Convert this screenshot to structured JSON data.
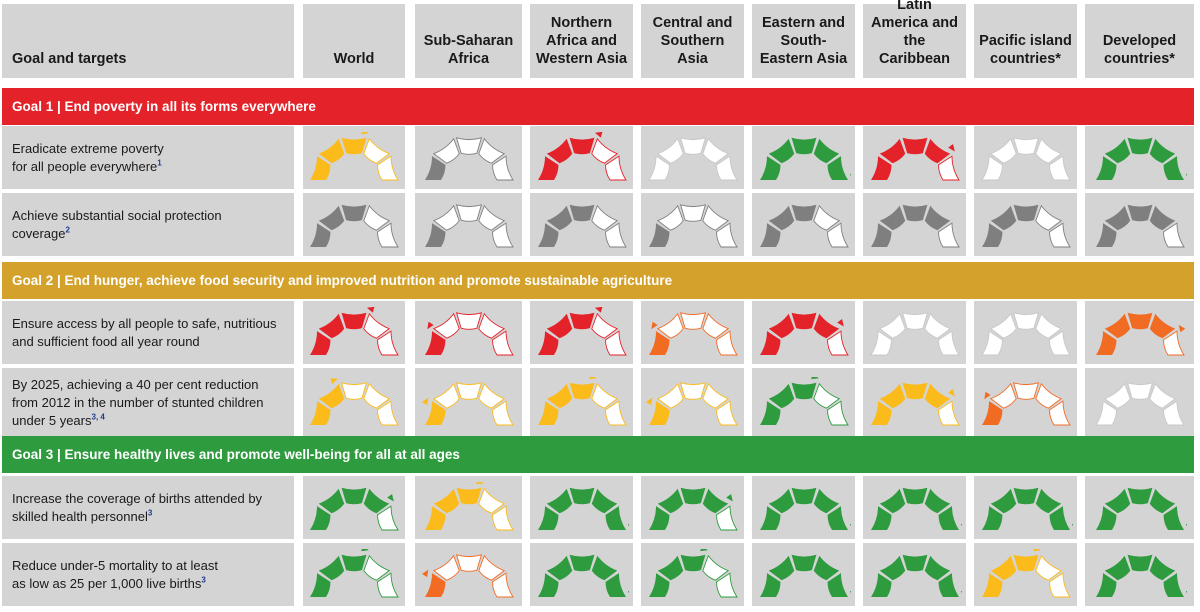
{
  "colors": {
    "goal1": "#e42229",
    "goal2": "#d4a12a",
    "goal3": "#2e9b3e",
    "red": "#e42229",
    "orange": "#f26b23",
    "yellow": "#fbbb1b",
    "green": "#2e9b3e",
    "grey": "#7f7f80",
    "empty_stroke": "#c8c8c8"
  },
  "header": {
    "first": "Goal and targets",
    "regions": [
      "World",
      "Sub-Saharan Africa",
      "Northern Africa and Western Asia",
      "Central and Southern Asia",
      "Eastern and South-Eastern Asia",
      "Latin America and the Caribbean",
      "Pacific island countries*",
      "Developed countries*"
    ]
  },
  "chart_data": {
    "type": "table",
    "title": "",
    "legend": "gauge = progress level (1-5 segments filled); color = status; arrow = trend (up = improving, down = deteriorating)",
    "columns": [
      "World",
      "Sub-Saharan Africa",
      "Northern Africa and Western Asia",
      "Central and Southern Asia",
      "Eastern and South-Eastern Asia",
      "Latin America and the Caribbean",
      "Pacific island countries*",
      "Developed countries*"
    ],
    "goals": [
      {
        "title": "Goal 1 | End poverty in all its forms everywhere",
        "color": "goal1",
        "rows": [
          {
            "target": "Eradicate extreme poverty for all people everywhere",
            "lines": [
              "Eradicate extreme poverty",
              "for all people everywhere"
            ],
            "footnote": "1",
            "gauges": [
              {
                "level": 3,
                "color": "yellow",
                "trend": "up"
              },
              {
                "level": 1,
                "color": "grey",
                "trend": ""
              },
              {
                "level": 3,
                "color": "red",
                "trend": "down"
              },
              {
                "level": 0,
                "color": "grey",
                "trend": ""
              },
              {
                "level": 5,
                "color": "green",
                "trend": "up"
              },
              {
                "level": 4,
                "color": "red",
                "trend": "up"
              },
              {
                "level": 0,
                "color": "grey",
                "trend": ""
              },
              {
                "level": 5,
                "color": "green",
                "trend": "up"
              }
            ]
          },
          {
            "target": "Achieve substantial social protection coverage",
            "lines": [
              "Achieve substantial social protection",
              "coverage"
            ],
            "footnote": "2",
            "gauges": [
              {
                "level": 3,
                "color": "grey",
                "trend": ""
              },
              {
                "level": 1,
                "color": "grey",
                "trend": ""
              },
              {
                "level": 3,
                "color": "grey",
                "trend": ""
              },
              {
                "level": 1,
                "color": "grey",
                "trend": ""
              },
              {
                "level": 3,
                "color": "grey",
                "trend": ""
              },
              {
                "level": 4,
                "color": "grey",
                "trend": ""
              },
              {
                "level": 3,
                "color": "grey",
                "trend": ""
              },
              {
                "level": 4,
                "color": "grey",
                "trend": ""
              }
            ]
          }
        ]
      },
      {
        "title": "Goal 2 | End hunger, achieve food security and improved nutrition and promote sustainable agriculture",
        "color": "goal2",
        "rows": [
          {
            "target": "Ensure access by all people to safe, nutritious and sufficient food all year round",
            "lines": [
              "Ensure access by all people to safe, nutritious",
              "and sufficient food all year round"
            ],
            "footnote": "",
            "gauges": [
              {
                "level": 3,
                "color": "red",
                "trend": "down"
              },
              {
                "level": 1,
                "color": "red",
                "trend": "down"
              },
              {
                "level": 3,
                "color": "red",
                "trend": "down"
              },
              {
                "level": 1,
                "color": "orange",
                "trend": "down"
              },
              {
                "level": 4,
                "color": "red",
                "trend": "up"
              },
              {
                "level": 0,
                "color": "grey",
                "trend": ""
              },
              {
                "level": 0,
                "color": "grey",
                "trend": ""
              },
              {
                "level": 4,
                "color": "orange",
                "trend": "down"
              }
            ]
          },
          {
            "target": "By 2025, achieving a 40 per cent reduction from 2012 in the number of stunted children under 5 years",
            "lines": [
              "By 2025, achieving a 40 per cent reduction",
              "from 2012 in the number of stunted children",
              "under 5 years"
            ],
            "footnote": "3, 4",
            "gauges": [
              {
                "level": 2,
                "color": "yellow",
                "trend": "up"
              },
              {
                "level": 1,
                "color": "yellow",
                "trend": "up"
              },
              {
                "level": 3,
                "color": "yellow",
                "trend": "up"
              },
              {
                "level": 1,
                "color": "yellow",
                "trend": "up"
              },
              {
                "level": 3,
                "color": "green",
                "trend": "up"
              },
              {
                "level": 4,
                "color": "yellow",
                "trend": "up"
              },
              {
                "level": 1,
                "color": "orange",
                "trend": "down"
              },
              {
                "level": 0,
                "color": "grey",
                "trend": ""
              }
            ]
          }
        ]
      },
      {
        "title": "Goal 3 | Ensure healthy lives and promote well-being for all at all ages",
        "color": "goal3",
        "rows": [
          {
            "target": "Increase the coverage of births attended by skilled health personnel",
            "lines": [
              "Increase the coverage of births attended by",
              "skilled health personnel"
            ],
            "footnote": "3",
            "gauges": [
              {
                "level": 4,
                "color": "green",
                "trend": "up"
              },
              {
                "level": 3,
                "color": "yellow",
                "trend": "up"
              },
              {
                "level": 5,
                "color": "green",
                "trend": "up"
              },
              {
                "level": 4,
                "color": "green",
                "trend": "up"
              },
              {
                "level": 5,
                "color": "green",
                "trend": "up"
              },
              {
                "level": 5,
                "color": "green",
                "trend": "up"
              },
              {
                "level": 5,
                "color": "green",
                "trend": "up"
              },
              {
                "level": 5,
                "color": "green",
                "trend": "up"
              }
            ]
          },
          {
            "target": "Reduce under-5 mortality to at least as low as 25 per 1,000 live births",
            "lines": [
              "Reduce under-5 mortality to at least",
              "as low as 25 per 1,000 live births"
            ],
            "footnote": "3",
            "gauges": [
              {
                "level": 3,
                "color": "green",
                "trend": "up"
              },
              {
                "level": 1,
                "color": "orange",
                "trend": "up"
              },
              {
                "level": 5,
                "color": "green",
                "trend": "up"
              },
              {
                "level": 3,
                "color": "green",
                "trend": "up"
              },
              {
                "level": 5,
                "color": "green",
                "trend": "up"
              },
              {
                "level": 5,
                "color": "green",
                "trend": "up"
              },
              {
                "level": 3,
                "color": "yellow",
                "trend": "up"
              },
              {
                "level": 5,
                "color": "green",
                "trend": "up"
              }
            ]
          }
        ]
      }
    ]
  }
}
